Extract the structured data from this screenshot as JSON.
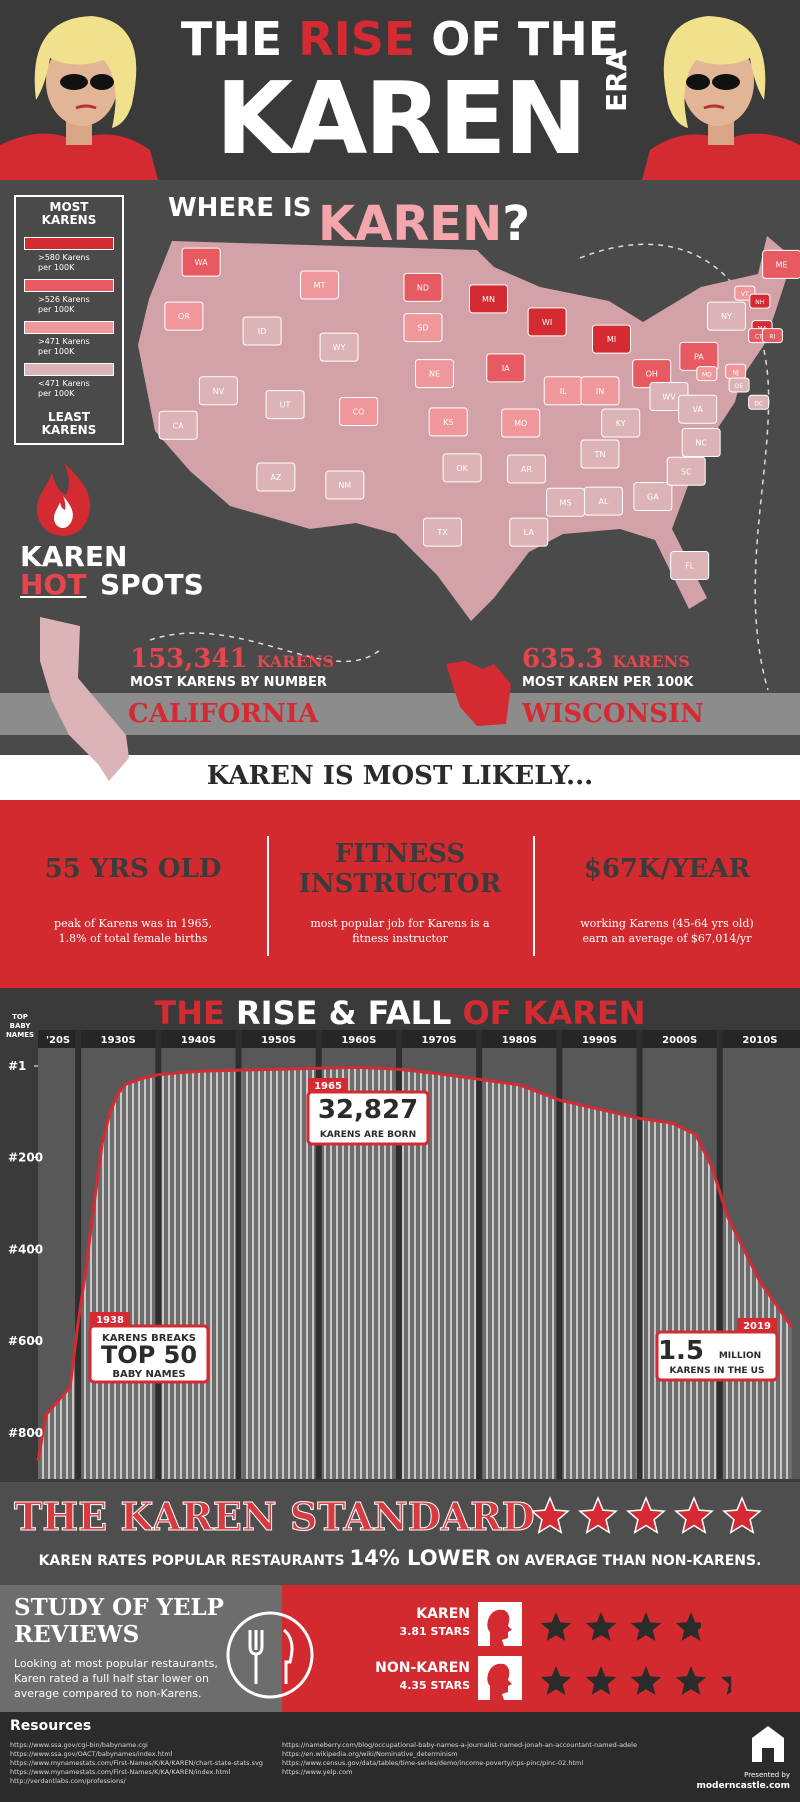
{
  "header": {
    "title_pre": "THE",
    "title_rise": "RISE",
    "title_post": "OF THE",
    "title_main": "KAREN",
    "title_era": "ERA"
  },
  "map": {
    "title_where": "WHERE IS",
    "title_karen": "KAREN",
    "title_q": "?",
    "legend": {
      "top": "MOST KARENS",
      "bottom": "LEAST KARENS",
      "items": [
        {
          "label": ">580 Karens per 100K",
          "color": "#d42a32"
        },
        {
          "label": ">526 Karens per 100K",
          "color": "#e85a62"
        },
        {
          "label": ">471 Karens per 100K",
          "color": "#f0979c"
        },
        {
          "label": "<471 Karens per 100K",
          "color": "#dcb3b7"
        }
      ]
    },
    "states": [
      {
        "abbr": "WA",
        "color": "#e85a62"
      },
      {
        "abbr": "OR",
        "color": "#f0979c"
      },
      {
        "abbr": "CA",
        "color": "#dcb3b7"
      },
      {
        "abbr": "NV",
        "color": "#dcb3b7"
      },
      {
        "abbr": "ID",
        "color": "#dcb3b7"
      },
      {
        "abbr": "MT",
        "color": "#f0979c"
      },
      {
        "abbr": "WY",
        "color": "#dcb3b7"
      },
      {
        "abbr": "UT",
        "color": "#dcb3b7"
      },
      {
        "abbr": "AZ",
        "color": "#dcb3b7"
      },
      {
        "abbr": "CO",
        "color": "#f0979c"
      },
      {
        "abbr": "NM",
        "color": "#dcb3b7"
      },
      {
        "abbr": "ND",
        "color": "#e85a62"
      },
      {
        "abbr": "SD",
        "color": "#f0979c"
      },
      {
        "abbr": "NE",
        "color": "#f0979c"
      },
      {
        "abbr": "KS",
        "color": "#f0979c"
      },
      {
        "abbr": "OK",
        "color": "#dcb3b7"
      },
      {
        "abbr": "TX",
        "color": "#dcb3b7"
      },
      {
        "abbr": "MN",
        "color": "#d42a32"
      },
      {
        "abbr": "IA",
        "color": "#e85a62"
      },
      {
        "abbr": "MO",
        "color": "#f0979c"
      },
      {
        "abbr": "AR",
        "color": "#dcb3b7"
      },
      {
        "abbr": "LA",
        "color": "#dcb3b7"
      },
      {
        "abbr": "WI",
        "color": "#d42a32"
      },
      {
        "abbr": "IL",
        "color": "#f0979c"
      },
      {
        "abbr": "MS",
        "color": "#dcb3b7"
      },
      {
        "abbr": "MI",
        "color": "#d42a32"
      },
      {
        "abbr": "IN",
        "color": "#f0979c"
      },
      {
        "abbr": "KY",
        "color": "#dcb3b7"
      },
      {
        "abbr": "TN",
        "color": "#dcb3b7"
      },
      {
        "abbr": "AL",
        "color": "#dcb3b7"
      },
      {
        "abbr": "OH",
        "color": "#e85a62"
      },
      {
        "abbr": "GA",
        "color": "#dcb3b7"
      },
      {
        "abbr": "FL",
        "color": "#dcb3b7"
      },
      {
        "abbr": "WV",
        "color": "#dcb3b7"
      },
      {
        "abbr": "VA",
        "color": "#dcb3b7"
      },
      {
        "abbr": "NC",
        "color": "#dcb3b7"
      },
      {
        "abbr": "SC",
        "color": "#dcb3b7"
      },
      {
        "abbr": "PA",
        "color": "#e85a62"
      },
      {
        "abbr": "NY",
        "color": "#dcb3b7"
      },
      {
        "abbr": "VT",
        "color": "#f0979c"
      },
      {
        "abbr": "NH",
        "color": "#d42a32"
      },
      {
        "abbr": "ME",
        "color": "#e85a62"
      },
      {
        "abbr": "MA",
        "color": "#d42a32"
      },
      {
        "abbr": "CT",
        "color": "#e85a62"
      },
      {
        "abbr": "RI",
        "color": "#e85a62"
      },
      {
        "abbr": "NJ",
        "color": "#f0979c"
      },
      {
        "abbr": "DE",
        "color": "#dcb3b7"
      },
      {
        "abbr": "MD",
        "color": "#f0979c"
      },
      {
        "abbr": "DC",
        "color": "#dcb3b7"
      }
    ],
    "hotspots": {
      "karen": "KAREN",
      "hot": "HOT",
      "spots": "SPOTS"
    },
    "california": {
      "stat": "153,341",
      "unit": "KARENS",
      "caption": "MOST KARENS BY NUMBER",
      "name": "CALIFORNIA"
    },
    "wisconsin": {
      "stat": "635.3",
      "unit": "KARENS",
      "caption": "MOST KAREN PER 100K",
      "name": "WISCONSIN"
    }
  },
  "likely": {
    "title": "KAREN IS MOST LIKELY...",
    "items": [
      {
        "headline": "55 YRS OLD",
        "text": "peak of Karens was in 1965, 1.8% of total female births"
      },
      {
        "headline": "FITNESS INSTRUCTOR",
        "text": "most popular job for Karens is a fitness instructor"
      },
      {
        "headline": "$67K/YEAR",
        "text": "working Karens (45-64 yrs old) earn an average of $67,014/yr"
      }
    ]
  },
  "chart_data": {
    "type": "line",
    "title_parts": [
      "THE",
      "RISE & FALL",
      "OF KAREN"
    ],
    "y_label": "TOP BABY NAMES",
    "x": [
      1925,
      1926,
      1927,
      1928,
      1929,
      1930,
      1931,
      1932,
      1933,
      1934,
      1935,
      1936,
      1938,
      1940,
      1943,
      1946,
      1950,
      1955,
      1960,
      1965,
      1970,
      1975,
      1980,
      1985,
      1990,
      1995,
      2000,
      2004,
      2007,
      2009,
      2011,
      2013,
      2015,
      2017,
      2019
    ],
    "values": [
      860,
      760,
      740,
      720,
      700,
      560,
      440,
      300,
      170,
      100,
      60,
      40,
      28,
      20,
      15,
      12,
      10,
      8,
      6,
      4,
      8,
      18,
      30,
      42,
      75,
      95,
      115,
      125,
      150,
      220,
      330,
      400,
      470,
      520,
      570
    ],
    "color": "#d42a32",
    "xlim": [
      1925,
      2020
    ],
    "xticks": [
      {
        "value": 1927.5,
        "label": "'20S"
      },
      {
        "value": 1935,
        "label": "1930S"
      },
      {
        "value": 1945,
        "label": "1940S"
      },
      {
        "value": 1955,
        "label": "1950S"
      },
      {
        "value": 1965,
        "label": "1960S"
      },
      {
        "value": 1975,
        "label": "1970S"
      },
      {
        "value": 1985,
        "label": "1980S"
      },
      {
        "value": 1995,
        "label": "1990S"
      },
      {
        "value": 2005,
        "label": "2000S"
      },
      {
        "value": 2015,
        "label": "2010S"
      }
    ],
    "ylim": [
      1,
      900
    ],
    "y_reversed": true,
    "yticks": [
      {
        "value": 1,
        "label": "#1"
      },
      {
        "value": 200,
        "label": "#200"
      },
      {
        "value": 400,
        "label": "#400"
      },
      {
        "value": 600,
        "label": "#600"
      },
      {
        "value": 800,
        "label": "#800"
      }
    ],
    "annotations": [
      {
        "year": "1938",
        "lines": [
          "KARENS BREAKS",
          "TOP 50",
          "BABY NAMES"
        ]
      },
      {
        "year": "1965",
        "lines": [
          "32,827",
          "KARENS ARE BORN"
        ]
      },
      {
        "year": "2019",
        "lines": [
          "1.5",
          "MILLION",
          "KARENS IN THE US"
        ]
      }
    ]
  },
  "standard": {
    "title": "THE KAREN STANDARD",
    "text_pre": "KAREN RATES POPULAR RESTAURANTS",
    "pct": "14% LOWER",
    "text_post": "ON AVERAGE THAN NON-KARENS."
  },
  "yelp": {
    "title": "STUDY OF YELP REVIEWS",
    "text": "Looking at most popular restaurants, Karen rated a full half star lower on average compared to non-Karens.",
    "ratings": [
      {
        "name": "KAREN",
        "stars_label": "3.81 STARS",
        "stars": 3.81
      },
      {
        "name": "NON-KAREN",
        "stars_label": "4.35 STARS",
        "stars": 4.35
      }
    ]
  },
  "resources": {
    "title": "Resources",
    "left": [
      "https://www.ssa.gov/cgi-bin/babyname.cgi",
      "https://www.ssa.gov/OACT/babynames/index.html",
      "https://www.mynamestats.com/First-Names/K/KA/KAREN/chart-state-stats.svg",
      "https://www.mynamestats.com/First-Names/K/KA/KAREN/index.html",
      "http://verdantlabs.com/professions/"
    ],
    "right": [
      "https://nameberry.com/blog/occupational-baby-names-a-journalist-named-jonah-an-accountant-named-adele",
      "https://en.wikipedia.org/wiki/Nominative_determinism",
      "https://www.census.gov/data/tables/time-series/demo/income-poverty/cps-pinc/pinc-02.html",
      "https://www.yelp.com"
    ],
    "presented": "Presented by",
    "brand": "moderncastle.com"
  }
}
